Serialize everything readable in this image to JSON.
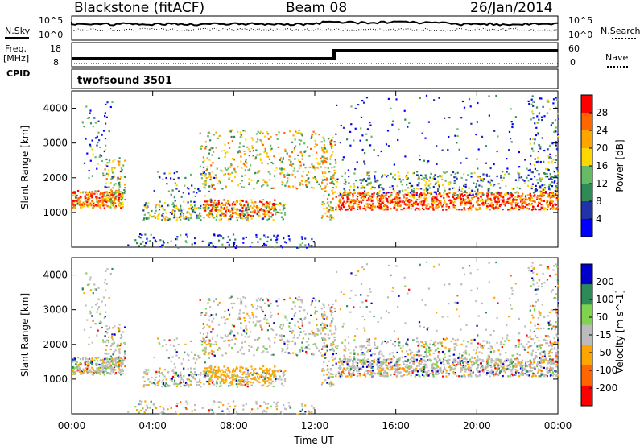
{
  "header": {
    "station": "Blackstone (fitACF)",
    "beam": "Beam 08",
    "date": "26/Jan/2014"
  },
  "panels": {
    "nsky_label": "N.Sky",
    "nsearch_label": "N.Search",
    "freq_label": "Freq.",
    "freq_unit": "[MHz]",
    "nave_label": "Nave",
    "cpid_label": "CPID",
    "cpid_value": "twofsound 3501",
    "nsky_ticks": [
      "10^5",
      "10^0"
    ],
    "nsearch_ticks": [
      "10^5",
      "10^0"
    ],
    "freq_ticks": [
      "18",
      "8"
    ],
    "nave_ticks": [
      "60",
      "0"
    ]
  },
  "colors": {
    "power_scale": [
      "#0000ff",
      "#2233aa",
      "#2e8b57",
      "#66bb66",
      "#ffd700",
      "#ffa500",
      "#ff6600",
      "#ff0000"
    ],
    "velocity_scale": [
      "#0000cc",
      "#2e8b57",
      "#7fd34e",
      "#bbbbbb",
      "#ffa500",
      "#ff6600",
      "#ff0000"
    ]
  },
  "chart_data": [
    {
      "type": "heatmap",
      "name": "power",
      "xlabel": "Time UT",
      "ylabel": "Slant Range [km]",
      "xlim": [
        0,
        24
      ],
      "ylim": [
        0,
        4500
      ],
      "x_tick_labels": [
        "00:00",
        "04:00",
        "08:00",
        "12:00",
        "16:00",
        "20:00",
        "00:00"
      ],
      "y_ticks": [
        1000,
        2000,
        3000,
        4000
      ],
      "colorbar_label": "Power [dB]",
      "colorbar_ticks": [
        4,
        8,
        12,
        16,
        20,
        24,
        28
      ],
      "colorbar_range": [
        0,
        30
      ]
    },
    {
      "type": "heatmap",
      "name": "velocity",
      "xlabel": "Time UT",
      "ylabel": "Slant Range [km]",
      "xlim": [
        0,
        24
      ],
      "ylim": [
        0,
        4500
      ],
      "x_tick_labels": [
        "00:00",
        "04:00",
        "08:00",
        "12:00",
        "16:00",
        "20:00",
        "00:00"
      ],
      "y_ticks": [
        1000,
        2000,
        3000,
        4000
      ],
      "colorbar_label": "Velocity [m s^-1]",
      "colorbar_ticks": [
        200,
        100,
        50,
        -15,
        -50,
        -100,
        -200
      ],
      "colorbar_range": [
        -250,
        250
      ]
    }
  ]
}
